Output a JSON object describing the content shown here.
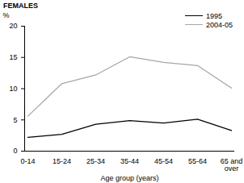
{
  "chart_data": {
    "type": "line",
    "title": "FEMALES",
    "x_label": "Age group (years)",
    "y_label": "%",
    "categories": [
      "0-14",
      "15-24",
      "25-34",
      "35-44",
      "45-54",
      "55-64",
      "65 and over"
    ],
    "series": [
      {
        "name": "1995",
        "color": "#000000",
        "values": [
          2.2,
          2.7,
          4.3,
          4.9,
          4.5,
          5.1,
          3.3
        ]
      },
      {
        "name": "2004-05",
        "color": "#a6a6a6",
        "values": [
          5.6,
          10.8,
          12.2,
          15.1,
          14.2,
          13.7,
          10.1
        ]
      }
    ],
    "ylim": [
      0,
      20
    ],
    "yticks": [
      0,
      5,
      10,
      15,
      20
    ],
    "grid": false,
    "legend": "top-right"
  }
}
